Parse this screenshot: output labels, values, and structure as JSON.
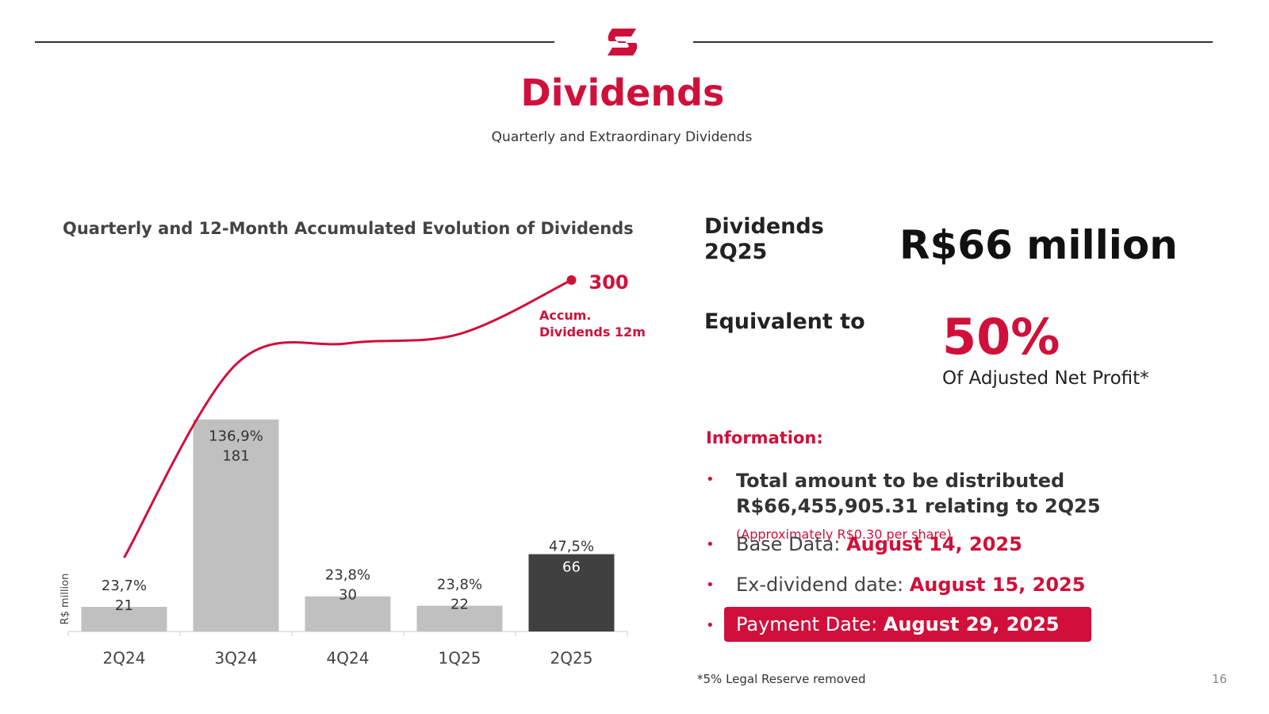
{
  "header": {
    "title": "Dividends",
    "subtitle": "Quarterly and Extraordinary Dividends"
  },
  "chart_data": {
    "type": "bar-line",
    "title": "Quarterly and 12-Month Accumulated Evolution of Dividends",
    "y_label": "R$ million",
    "categories": [
      "2Q24",
      "3Q24",
      "4Q24",
      "1Q25",
      "2Q25"
    ],
    "series": [
      {
        "type": "bar",
        "values": [
          21,
          181,
          30,
          22,
          66
        ],
        "colors": [
          "#c0c0c0",
          "#c0c0c0",
          "#c0c0c0",
          "#c0c0c0",
          "#404040"
        ],
        "payout_labels": [
          "23,7%",
          "136,9%",
          "23,8%",
          "23,8%",
          "47,5%"
        ]
      },
      {
        "type": "line",
        "name": "Accum. Dividends 12m",
        "color": "#d0103a",
        "values": [
          63,
          228,
          246,
          254,
          300
        ]
      }
    ]
  },
  "panel": {
    "dividends_label": "Dividends 2Q25",
    "dividends_value": "R$66 million",
    "equivalent_label": "Equivalent to",
    "equivalent_value": "50%",
    "equivalent_caption": "Of Adjusted Net Profit*",
    "info_heading": "Information:",
    "items": [
      {
        "text": "Total amount to be distributed R$66,455,905.31 relating to 2Q25",
        "note": "(Approximately R$0.30 per share)"
      },
      {
        "label": "Base Data:",
        "value": "August 14, 2025"
      },
      {
        "label": "Ex-dividend date:",
        "value": "August 15, 2025"
      },
      {
        "label": "Payment Date:",
        "value": "August 29, 2025"
      }
    ]
  },
  "footer": {
    "note": "*5% Legal Reserve removed",
    "page": "16"
  }
}
